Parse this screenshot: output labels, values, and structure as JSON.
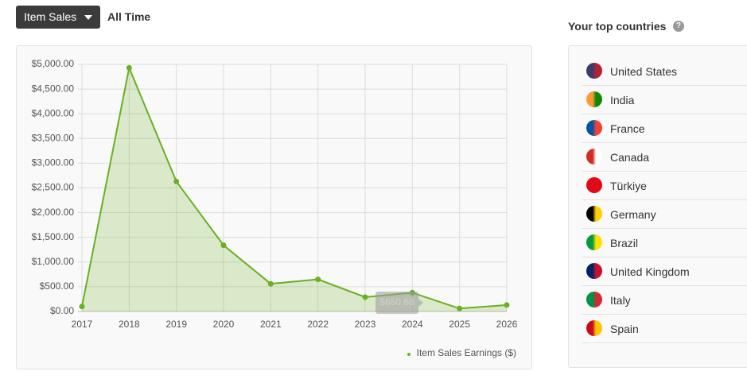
{
  "header": {
    "dropdown": "Item Sales",
    "period": "All Time"
  },
  "chart_data": {
    "type": "line",
    "categories": [
      "2017",
      "2018",
      "2019",
      "2020",
      "2021",
      "2022",
      "2023",
      "2024",
      "2025",
      "2026"
    ],
    "series": [
      {
        "name": "Item Sales Earnings ($)",
        "color": "#6ab023",
        "values": [
          100,
          4930,
          2630,
          1340,
          560,
          650,
          290,
          380,
          60,
          130
        ]
      }
    ],
    "ylim": [
      0,
      5000
    ],
    "yticks": [
      {
        "value": 0,
        "label": "$0.00"
      },
      {
        "value": 500,
        "label": "$500.00"
      },
      {
        "value": 1000,
        "label": "$1,000.00"
      },
      {
        "value": 1500,
        "label": "$1,500.00"
      },
      {
        "value": 2000,
        "label": "$2,000.00"
      },
      {
        "value": 2500,
        "label": "$2,500.00"
      },
      {
        "value": 3000,
        "label": "$3,000.00"
      },
      {
        "value": 3500,
        "label": "$3,500.00"
      },
      {
        "value": 4000,
        "label": "$4,000.00"
      },
      {
        "value": 4500,
        "label": "$4,500.00"
      },
      {
        "value": 5000,
        "label": "$5,000.00"
      }
    ],
    "grid": true,
    "area": true,
    "legend": "bottom-right"
  },
  "tooltip": "$650.68",
  "countries": {
    "title": "Your top countries",
    "help": "?",
    "items": [
      "United States",
      "India",
      "France",
      "Canada",
      "Türkiye",
      "Germany",
      "Brazil",
      "United Kingdom",
      "Italy",
      "Spain"
    ]
  }
}
